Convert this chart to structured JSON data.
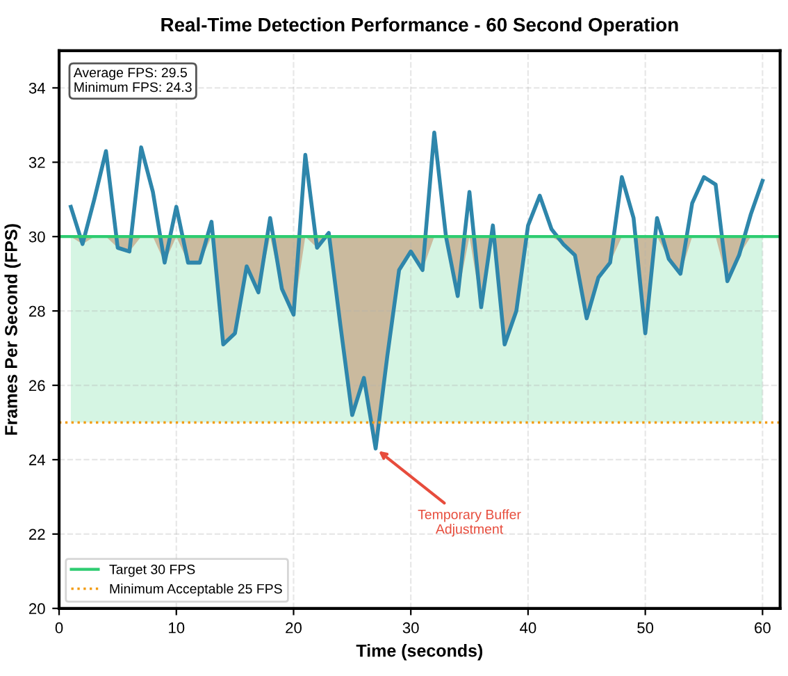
{
  "chart_data": {
    "type": "line",
    "title": "Real-Time Detection Performance - 60 Second Operation",
    "xlabel": "Time (seconds)",
    "ylabel": "Frames Per Second (FPS)",
    "x": [
      1,
      2,
      3,
      4,
      5,
      6,
      7,
      8,
      9,
      10,
      11,
      12,
      13,
      14,
      15,
      16,
      17,
      18,
      19,
      20,
      21,
      22,
      23,
      24,
      25,
      26,
      27,
      28,
      29,
      30,
      31,
      32,
      33,
      34,
      35,
      36,
      37,
      38,
      39,
      40,
      41,
      42,
      43,
      44,
      45,
      46,
      47,
      48,
      49,
      50,
      51,
      52,
      53,
      54,
      55,
      56,
      57,
      58,
      59,
      60
    ],
    "series": [
      {
        "color": "#2e86ab",
        "values": [
          30.8,
          29.8,
          31.0,
          32.3,
          29.7,
          29.6,
          32.4,
          31.2,
          29.3,
          30.8,
          29.3,
          29.3,
          30.4,
          27.1,
          27.4,
          29.2,
          28.5,
          30.5,
          28.6,
          27.9,
          32.2,
          29.7,
          30.1,
          27.6,
          25.2,
          26.2,
          24.3,
          26.8,
          29.1,
          29.6,
          29.1,
          32.8,
          30.0,
          28.4,
          31.2,
          28.1,
          30.3,
          27.1,
          28.0,
          30.3,
          31.1,
          30.2,
          29.8,
          29.5,
          27.8,
          28.9,
          29.3,
          31.6,
          30.5,
          27.4,
          30.5,
          29.4,
          29.0,
          30.9,
          31.6,
          31.4,
          28.8,
          29.5,
          30.6,
          31.5
        ],
        "lower": [
          30,
          29.8,
          30,
          30,
          29.7,
          29.6,
          30,
          30,
          29.3,
          30,
          29.3,
          29.3,
          30,
          27.1,
          27.4,
          29.2,
          28.5,
          30,
          28.6,
          27.9,
          30,
          29.7,
          30,
          27.6,
          25.2,
          26.2,
          24.3,
          26.8,
          29.1,
          29.6,
          29.1,
          30,
          30,
          28.4,
          30,
          28.1,
          30,
          27.1,
          28.0,
          30,
          30,
          30,
          29.8,
          29.5,
          27.8,
          28.9,
          29.3,
          30,
          30,
          27.4,
          30,
          29.4,
          29.0,
          30,
          30,
          30,
          28.8,
          29.5,
          30,
          30
        ],
        "upper": [
          30,
          30,
          30,
          30,
          30,
          30,
          30,
          30,
          30,
          30,
          30,
          30,
          30,
          30,
          30,
          30,
          30,
          30,
          30,
          30,
          30,
          30,
          30,
          30,
          30,
          30,
          30,
          30,
          30,
          30,
          30,
          30,
          30,
          30,
          30,
          30,
          30,
          30,
          30,
          30,
          30,
          30,
          30,
          30,
          30,
          30,
          30,
          30,
          30,
          30,
          30,
          30,
          30,
          30,
          30,
          30,
          30,
          30,
          30,
          30
        ]
      }
    ],
    "ref_lines": [
      {
        "axis": "y",
        "value": 30,
        "label": "Target 30 FPS",
        "color": "#2ecc71",
        "line_style": "solid"
      },
      {
        "axis": "y",
        "value": 25,
        "label": "Minimum Acceptable 25 FPS",
        "color": "#f39c12",
        "line_style": "dotted"
      }
    ],
    "bands": [
      {
        "axis": "y",
        "from": 25,
        "to": 30,
        "color": "#2ecc71"
      }
    ],
    "annotations": [
      "Average FPS: 29.5\nMinimum FPS: 24.3",
      {
        "text": "Temporary Buffer\nAdjustment",
        "x": 27,
        "y": 24.3
      }
    ],
    "xlim": [
      0,
      61.5
    ],
    "ylim": [
      20,
      35
    ],
    "xticks": [
      0,
      10,
      20,
      30,
      40,
      50,
      60
    ],
    "yticks": [
      20,
      22,
      24,
      26,
      28,
      30,
      32,
      34
    ],
    "grid": true,
    "legend": "bottom left"
  }
}
